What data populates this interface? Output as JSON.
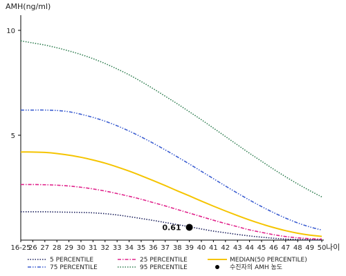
{
  "chart_data": {
    "type": "line",
    "ylabel": "AMH(ng/ml)",
    "xlabel": "나이",
    "x": [
      "16-25",
      "26",
      "27",
      "28",
      "29",
      "30",
      "31",
      "32",
      "33",
      "34",
      "35",
      "36",
      "37",
      "38",
      "39",
      "40",
      "41",
      "42",
      "43",
      "44",
      "45",
      "46",
      "47",
      "48",
      "49",
      "50"
    ],
    "yticks": [
      5,
      10
    ],
    "ylim": [
      0,
      11
    ],
    "grid": false,
    "legend_placement": "bottom",
    "series": [
      {
        "name": "5 PERCENTILE",
        "color": "#1a1f5c",
        "dash": "dotted",
        "values": [
          1.35,
          1.35,
          1.35,
          1.34,
          1.33,
          1.32,
          1.3,
          1.26,
          1.2,
          1.12,
          1.03,
          0.94,
          0.84,
          0.74,
          0.64,
          0.53,
          0.43,
          0.35,
          0.27,
          0.2,
          0.14,
          0.09,
          0.05,
          0.03,
          0.02,
          0.02
        ]
      },
      {
        "name": "25 PERCENTILE",
        "color": "#e0208a",
        "dash": "dashdot",
        "values": [
          2.65,
          2.65,
          2.64,
          2.62,
          2.58,
          2.52,
          2.44,
          2.34,
          2.22,
          2.09,
          1.95,
          1.79,
          1.63,
          1.46,
          1.29,
          1.12,
          0.95,
          0.79,
          0.64,
          0.49,
          0.37,
          0.26,
          0.17,
          0.11,
          0.07,
          0.05
        ]
      },
      {
        "name": "MEDIAN(50 PERCENTILE)",
        "color": "#f5c400",
        "dash": "solid",
        "values": [
          4.2,
          4.2,
          4.18,
          4.13,
          4.05,
          3.95,
          3.82,
          3.67,
          3.49,
          3.29,
          3.07,
          2.84,
          2.6,
          2.35,
          2.11,
          1.86,
          1.62,
          1.39,
          1.17,
          0.96,
          0.77,
          0.6,
          0.45,
          0.33,
          0.24,
          0.18
        ]
      },
      {
        "name": "75 PERCENTILE",
        "color": "#3a5cd0",
        "dash": "dashdotdot",
        "values": [
          6.2,
          6.2,
          6.2,
          6.18,
          6.12,
          6.0,
          5.85,
          5.67,
          5.45,
          5.2,
          4.92,
          4.62,
          4.3,
          3.97,
          3.63,
          3.28,
          2.93,
          2.58,
          2.24,
          1.91,
          1.6,
          1.31,
          1.05,
          0.82,
          0.63,
          0.48
        ]
      },
      {
        "name": "95 PERCENTILE",
        "color": "#2e7d4f",
        "dash": "dotted",
        "values": [
          9.5,
          9.4,
          9.3,
          9.17,
          9.02,
          8.85,
          8.65,
          8.42,
          8.16,
          7.88,
          7.56,
          7.22,
          6.86,
          6.5,
          6.12,
          5.74,
          5.34,
          4.94,
          4.54,
          4.14,
          3.76,
          3.38,
          3.02,
          2.68,
          2.36,
          2.06
        ]
      }
    ],
    "marker": {
      "name": "수진자의 AMH 농도",
      "x": "39",
      "y": 0.61,
      "label": "0.61",
      "color": "#000000"
    }
  }
}
